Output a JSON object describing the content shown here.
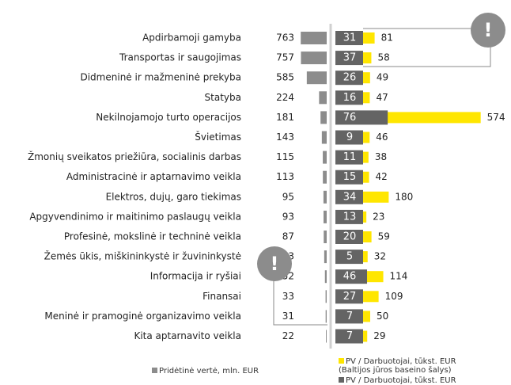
{
  "chart_data": {
    "type": "bar",
    "categories": [
      "Apdirbamoji gamyba",
      "Transportas ir saugojimas",
      "Didmeninė ir mažmeninė prekyba",
      "Statyba",
      "Nekilnojamojo turto operacijos",
      "Švietimas",
      "Žmonių sveikatos priežiūra, socialinis darbas",
      "Administracinė ir aptarnavimo veikla",
      "Elektros, dujų, garo tiekimas",
      "Apgyvendinimo ir maitinimo paslaugų veikla",
      "Profesinė, mokslinė ir techninė veikla",
      "Žemės ūkis, miškininkystė ir žuvininkystė",
      "Informacija ir ryšiai",
      "Finansai",
      "Meninė ir pramoginė organizavimo veikla",
      "Kita aptarnavito veikla"
    ],
    "series": [
      {
        "name": "Pridėtinė vertė, mln. EUR",
        "color": "#8c8c8c",
        "values": [
          763,
          757,
          585,
          224,
          181,
          143,
          115,
          113,
          95,
          93,
          87,
          73,
          52,
          33,
          31,
          22
        ]
      },
      {
        "name": "PV / Darbuotojai, tūkst. EUR (Baltijos jūros baseino šalys)",
        "color": "#ffe600",
        "values": [
          81,
          58,
          49,
          47,
          574,
          46,
          38,
          42,
          180,
          23,
          59,
          32,
          114,
          109,
          50,
          29
        ]
      },
      {
        "name": "PV / Darbuotojai, tūkst. EUR",
        "color": "#646464",
        "values": [
          31,
          37,
          26,
          16,
          76,
          9,
          11,
          15,
          34,
          13,
          20,
          5,
          46,
          27,
          7,
          7
        ]
      }
    ]
  }
}
